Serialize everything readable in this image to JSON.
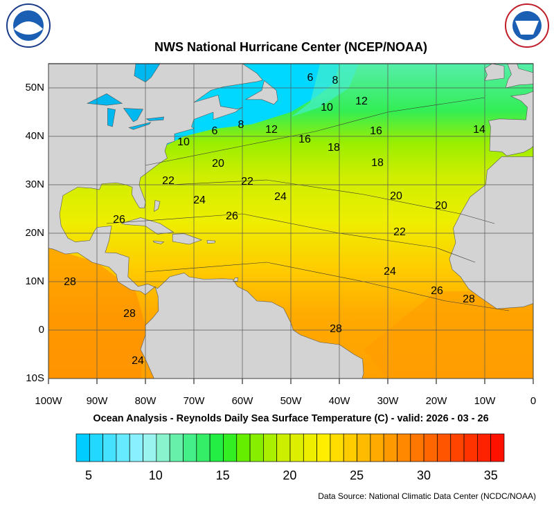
{
  "header": {
    "title": "NWS National Hurricane Center (NCEP/NOAA)"
  },
  "map": {
    "lon_ticks": [
      "100W",
      "90W",
      "80W",
      "70W",
      "60W",
      "50W",
      "40W",
      "30W",
      "20W",
      "10W",
      "0"
    ],
    "lat_ticks": [
      "50N",
      "40N",
      "30N",
      "20N",
      "10N",
      "0",
      "10S"
    ],
    "contour_labels": [
      "6",
      "8",
      "10",
      "12",
      "6",
      "8",
      "12",
      "10",
      "16",
      "16",
      "14",
      "18",
      "18",
      "20",
      "22",
      "22",
      "24",
      "24",
      "20",
      "20",
      "26",
      "26",
      "22",
      "24",
      "28",
      "26",
      "28",
      "28",
      "28",
      "24"
    ]
  },
  "caption": "Ocean Analysis - Reynolds Daily Sea Surface Temperature (C) - valid: 2026 - 03 - 26",
  "colorbar": {
    "ticks": [
      5,
      10,
      15,
      20,
      25,
      30,
      35
    ],
    "colors": [
      "#00ccff",
      "#22d8ff",
      "#44e2ff",
      "#66eaff",
      "#88f0ff",
      "#99f3ee",
      "#88f3cc",
      "#66f0aa",
      "#44ee88",
      "#33ee66",
      "#22ee44",
      "#33ee22",
      "#66ee00",
      "#88ee00",
      "#aaee00",
      "#ccee00",
      "#ddee00",
      "#eeee00",
      "#ffee00",
      "#ffdd00",
      "#ffcc00",
      "#ffbb00",
      "#ffaa00",
      "#ff9900",
      "#ff8800",
      "#ff7700",
      "#ff6600",
      "#ff5500",
      "#ff4400",
      "#ff3300",
      "#ff2200",
      "#ff1100"
    ]
  },
  "source": "Data Source: National Climatic Data Center (NCDC/NOAA)"
}
